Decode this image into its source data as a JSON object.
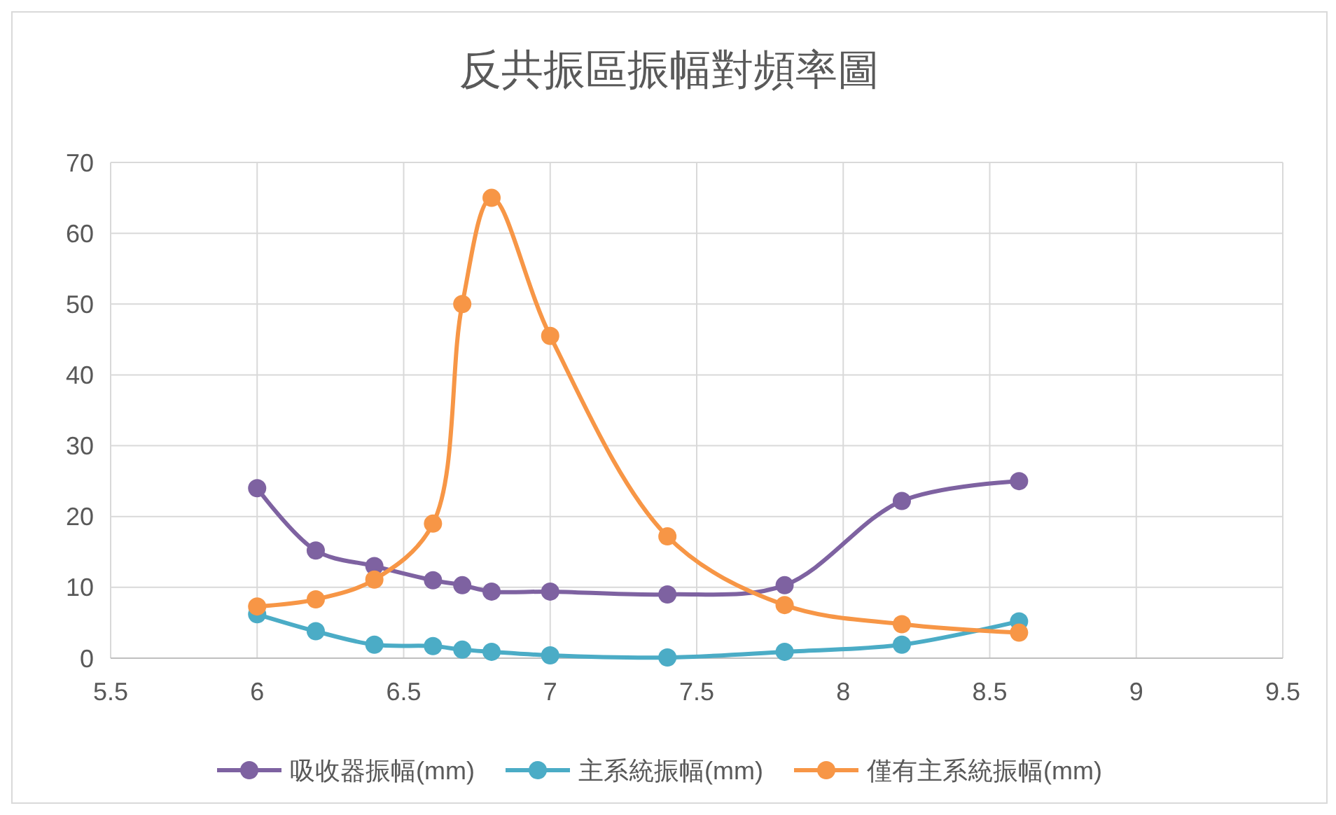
{
  "chart_data": {
    "type": "line",
    "title": "反共振區振幅對頻率圖",
    "x": [
      6,
      6.2,
      6.4,
      6.6,
      6.7,
      6.8,
      7,
      7.4,
      7.8,
      8.2,
      8.6
    ],
    "series": [
      {
        "name": "吸收器振幅(mm)",
        "color": "#7e62a1",
        "values": [
          24,
          15.2,
          13,
          11,
          10.3,
          9.4,
          9.4,
          9,
          10.3,
          22.2,
          25
        ]
      },
      {
        "name": "主系統振幅(mm)",
        "color": "#4bacc6",
        "values": [
          6.2,
          3.8,
          1.9,
          1.7,
          1.2,
          0.9,
          0.4,
          0.1,
          0.9,
          1.9,
          5.2
        ]
      },
      {
        "name": "僅有主系統振幅(mm)",
        "color": "#f79646",
        "values": [
          7.3,
          8.3,
          11.1,
          19,
          50,
          65,
          45.5,
          17.2,
          7.5,
          4.8,
          3.6
        ]
      }
    ],
    "xlim": [
      5.5,
      9.5
    ],
    "xticks": [
      5.5,
      6,
      6.5,
      7,
      7.5,
      8,
      8.5,
      9,
      9.5
    ],
    "ylim": [
      0,
      70
    ],
    "yticks": [
      0,
      10,
      20,
      30,
      40,
      50,
      60,
      70
    ],
    "grid": true,
    "legend": "bottom",
    "marker": "circle",
    "line_style": "solid"
  }
}
